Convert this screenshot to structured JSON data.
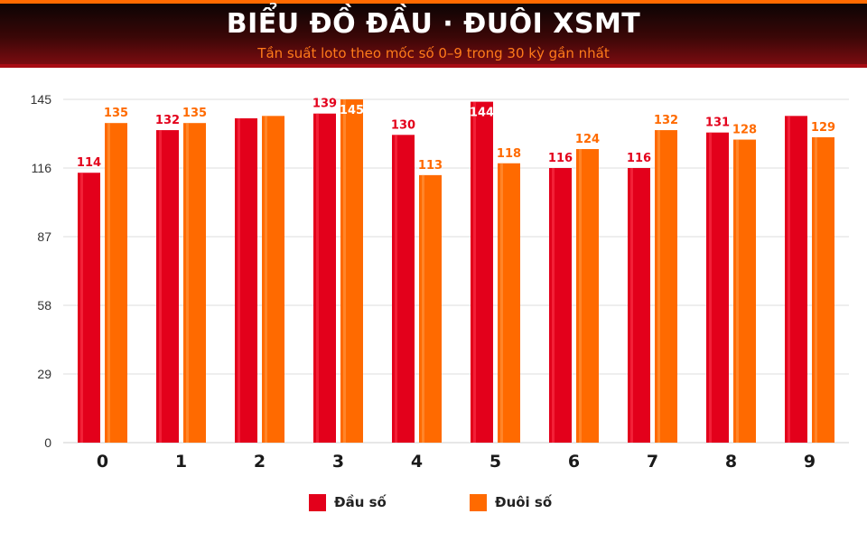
{
  "header": {
    "title": "BIỂU ĐỒ ĐẦU · ĐUÔI XSMT",
    "subtitle": "Tần suất loto theo mốc số 0–9 trong 30 kỳ gần nhất"
  },
  "colors": {
    "head": "#e3001b",
    "tail": "#ff6a00",
    "grid": "#dddddd",
    "header_bg": "#2a0505"
  },
  "chart_data": {
    "type": "bar",
    "categories": [
      "0",
      "1",
      "2",
      "3",
      "4",
      "5",
      "6",
      "7",
      "8",
      "9"
    ],
    "series": [
      {
        "name": "Đầu số",
        "values": [
          114,
          132,
          137,
          139,
          130,
          144,
          116,
          116,
          131,
          138
        ],
        "labels": [
          "114",
          "132",
          "",
          "139",
          "130",
          "144",
          "116",
          "116",
          "131",
          ""
        ]
      },
      {
        "name": "Đuôi số",
        "values": [
          135,
          135,
          138,
          145,
          113,
          118,
          124,
          132,
          128,
          129
        ],
        "labels": [
          "135",
          "135",
          "",
          "145",
          "113",
          "118",
          "124",
          "132",
          "128",
          "129"
        ]
      }
    ],
    "y_ticks": [
      "0",
      "29",
      "58",
      "87",
      "116",
      "145"
    ],
    "ylim": [
      0,
      145
    ],
    "grid": true,
    "legend": "bottom"
  },
  "legend": {
    "items": [
      {
        "label": "Đầu số"
      },
      {
        "label": "Đuôi số"
      }
    ]
  }
}
